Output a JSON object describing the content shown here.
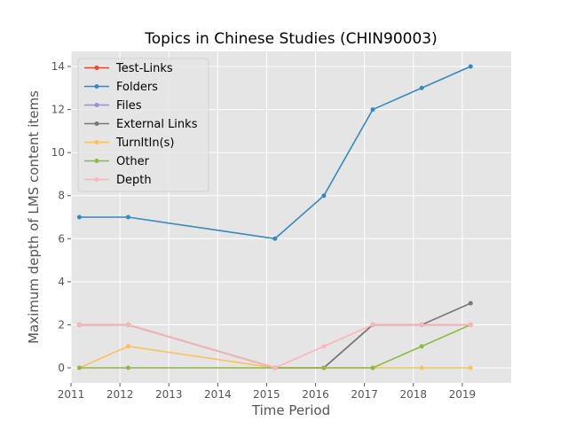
{
  "chart_data": {
    "type": "line",
    "title": "Topics in Chinese Studies (CHIN90003)",
    "xlabel": "Time Period",
    "ylabel": "Maximum depth of LMS content items",
    "xlim": [
      2011,
      2020
    ],
    "ylim": [
      -0.7,
      14.7
    ],
    "x_ticks": [
      2011,
      2012,
      2013,
      2014,
      2015,
      2016,
      2017,
      2018,
      2019
    ],
    "y_ticks": [
      0,
      2,
      4,
      6,
      8,
      10,
      12,
      14
    ],
    "grid": true,
    "legend_position": "upper-left",
    "x": [
      2011.17,
      2012.17,
      2015.17,
      2016.17,
      2017.17,
      2018.17,
      2019.17
    ],
    "series": [
      {
        "name": "Test-Links",
        "color": "#e24a33",
        "values": [
          2,
          2,
          0,
          0,
          2,
          2,
          2
        ]
      },
      {
        "name": "Folders",
        "color": "#348abd",
        "values": [
          7,
          7,
          6,
          8,
          12,
          13,
          14
        ]
      },
      {
        "name": "Files",
        "color": "#988ed5",
        "values": [
          2,
          2,
          0,
          0,
          2,
          2,
          2
        ]
      },
      {
        "name": "External Links",
        "color": "#777777",
        "values": [
          2,
          2,
          0,
          0,
          2,
          2,
          3
        ]
      },
      {
        "name": "TurnItIn(s)",
        "color": "#fbc15e",
        "values": [
          0,
          1,
          0,
          0,
          0,
          0,
          0
        ]
      },
      {
        "name": "Other",
        "color": "#8eba42",
        "values": [
          0,
          0,
          0,
          0,
          0,
          1,
          2
        ]
      },
      {
        "name": "Depth",
        "color": "#ffb5b8",
        "values": [
          2,
          2,
          0,
          1,
          2,
          2,
          2
        ]
      }
    ]
  }
}
